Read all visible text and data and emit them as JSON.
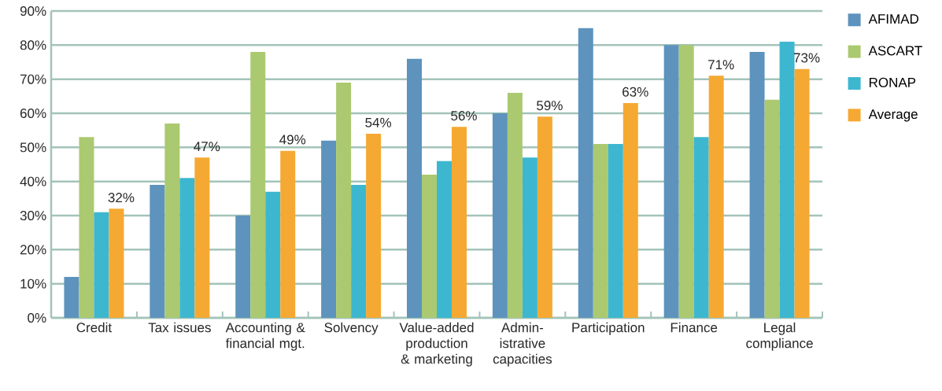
{
  "chart_data": {
    "type": "bar",
    "categories": [
      "Credit",
      "Tax issues",
      "Accounting & financial mgt.",
      "Solvency",
      "Value-added production & marketing",
      "Admin-istrative capacities",
      "Participation",
      "Finance",
      "Legal compliance"
    ],
    "series": [
      {
        "name": "AFIMAD",
        "color": "#5d93bd",
        "values": [
          12,
          39,
          30,
          52,
          76,
          60,
          85,
          80,
          78
        ]
      },
      {
        "name": "ASCART",
        "color": "#abc970",
        "values": [
          53,
          57,
          78,
          69,
          42,
          66,
          51,
          80,
          64
        ]
      },
      {
        "name": "RONAP",
        "color": "#3db7cf",
        "values": [
          31,
          41,
          37,
          39,
          46,
          47,
          51,
          53,
          81
        ]
      },
      {
        "name": "Average",
        "color": "#f5a932",
        "values": [
          32,
          47,
          49,
          54,
          56,
          59,
          63,
          71,
          73
        ],
        "value_labels": [
          "32%",
          "47%",
          "49%",
          "54%",
          "56%",
          "59%",
          "63%",
          "71%",
          "73%"
        ]
      }
    ],
    "ylim": [
      0,
      90
    ],
    "yticks": [
      {
        "value": 0,
        "label": "0%"
      },
      {
        "value": 10,
        "label": "10%"
      },
      {
        "value": 20,
        "label": "20%"
      },
      {
        "value": 30,
        "label": "30%"
      },
      {
        "value": 40,
        "label": "40%"
      },
      {
        "value": 50,
        "label": "50%"
      },
      {
        "value": 60,
        "label": "60%"
      },
      {
        "value": 70,
        "label": "70%"
      },
      {
        "value": 80,
        "label": "80%"
      },
      {
        "value": 90,
        "label": "90%"
      }
    ],
    "grid": "y",
    "legend": "right"
  }
}
